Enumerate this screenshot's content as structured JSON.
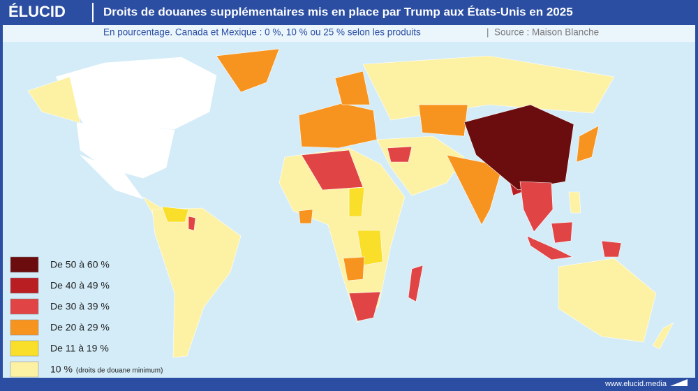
{
  "header": {
    "logo": "ÉLUCID",
    "title": "Droits de douanes supplémentaires mis en place par Trump aux États-Unis en 2025"
  },
  "subtitle": {
    "text": "En pourcentage. Canada et Mexique : 0 %, 10 % ou 25 % selon les produits",
    "separator": "|",
    "source": "Source : Maison Blanche"
  },
  "legend": {
    "items": [
      {
        "label": "De 50 à 60 %",
        "color": "#6b0d0f"
      },
      {
        "label": "De 40 à 49 %",
        "color": "#b81e22"
      },
      {
        "label": "De 30 à 39 %",
        "color": "#e04445"
      },
      {
        "label": "De 20 à 29 %",
        "color": "#f79420"
      },
      {
        "label": "De 11 à 19 %",
        "color": "#f9df2a"
      },
      {
        "label": "10 %",
        "note": "(droits de douane minimum)",
        "color": "#fdf1a4"
      }
    ]
  },
  "footer": {
    "url": "www.elucid.media"
  }
}
